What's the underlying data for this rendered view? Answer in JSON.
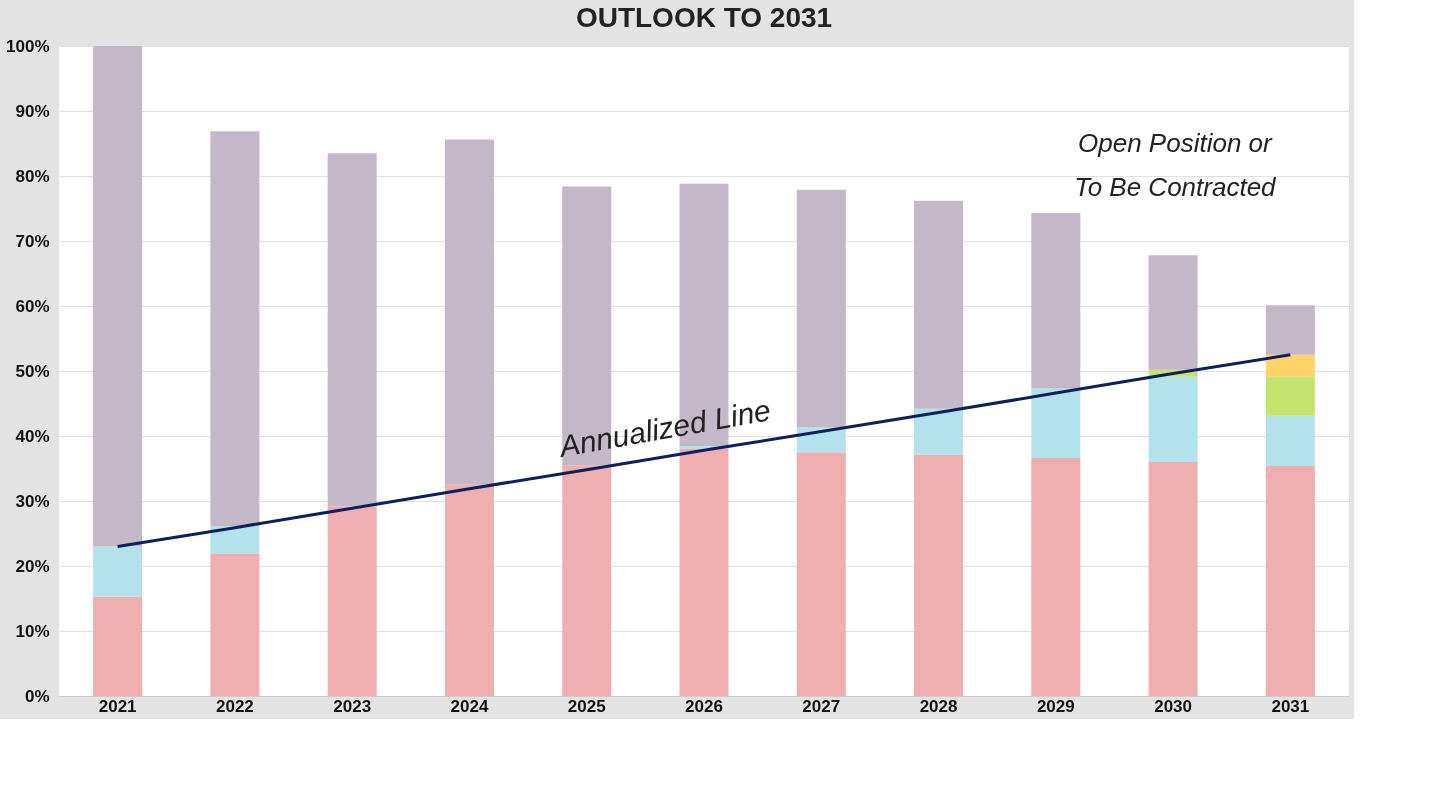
{
  "chart_data": {
    "type": "bar",
    "title": "OUTLOOK TO 2031",
    "stacked": true,
    "grid": "y",
    "categories": [
      "2021",
      "2022",
      "2023",
      "2024",
      "2025",
      "2026",
      "2027",
      "2028",
      "2029",
      "2030",
      "2031"
    ],
    "series": [
      {
        "color": "#efafb0",
        "values": [
          15.3,
          21.9,
          29.2,
          32.5,
          35.5,
          38.0,
          37.5,
          37.1,
          36.6,
          36.0,
          35.4
        ]
      },
      {
        "color": "#b3e1ec",
        "values": [
          7.7,
          4.2,
          null,
          null,
          null,
          0.4,
          3.8,
          7.1,
          10.7,
          13.1,
          7.7
        ]
      },
      {
        "color": "#c5e36f",
        "values": [
          null,
          null,
          null,
          null,
          null,
          null,
          null,
          null,
          null,
          1.1,
          6.1
        ]
      },
      {
        "color": "#fed466",
        "values": [
          null,
          null,
          null,
          null,
          null,
          null,
          null,
          null,
          null,
          null,
          3.3
        ]
      },
      {
        "color": "#c4b8c8",
        "values": [
          77.0,
          60.8,
          54.3,
          53.1,
          42.9,
          40.4,
          36.6,
          32.0,
          27.0,
          17.6,
          7.6
        ]
      },
      {
        "type": "line",
        "color": "#0d1f5c",
        "values": [
          23.0,
          25.9,
          28.9,
          31.9,
          34.8,
          37.8,
          40.7,
          43.6,
          46.6,
          49.6,
          52.5
        ]
      }
    ],
    "ylim": [
      0,
      100
    ],
    "yticks": [
      {
        "value": 0,
        "label": "0%"
      },
      {
        "value": 10,
        "label": "10%"
      },
      {
        "value": 20,
        "label": "20%"
      },
      {
        "value": 30,
        "label": "30%"
      },
      {
        "value": 40,
        "label": "40%"
      },
      {
        "value": 50,
        "label": "50%"
      },
      {
        "value": 60,
        "label": "60%"
      },
      {
        "value": 70,
        "label": "70%"
      },
      {
        "value": 80,
        "label": "80%"
      },
      {
        "value": 90,
        "label": "90%"
      },
      {
        "value": 100,
        "label": "100%"
      }
    ],
    "annotations": [
      "Annualized Line",
      "Open Position or\nTo Be Contracted"
    ]
  }
}
